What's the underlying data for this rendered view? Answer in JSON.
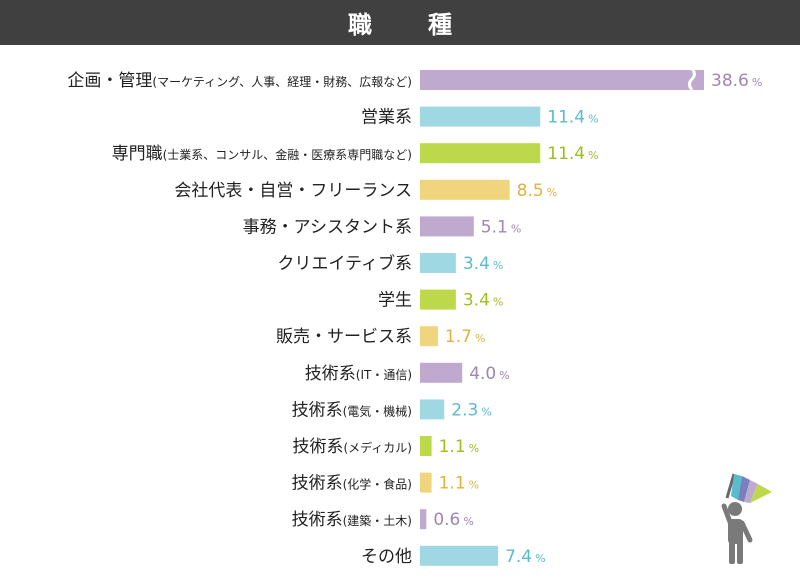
{
  "header": {
    "title": "職　種"
  },
  "chart_data": {
    "type": "bar",
    "orientation": "horizontal",
    "title": "職　種",
    "unit": "%",
    "axis_break": true,
    "categories": [
      {
        "main": "企画・管理",
        "sub": "(マーケティング、人事、経理・財務、広報など)"
      },
      {
        "main": "営業系",
        "sub": ""
      },
      {
        "main": "専門職",
        "sub": "(士業系、コンサル、金融・医療系専門職など)"
      },
      {
        "main": "会社代表・自営・フリーランス",
        "sub": ""
      },
      {
        "main": "事務・アシスタント系",
        "sub": ""
      },
      {
        "main": "クリエイティブ系",
        "sub": ""
      },
      {
        "main": "学生",
        "sub": ""
      },
      {
        "main": "販売・サービス系",
        "sub": ""
      },
      {
        "main": "技術系",
        "sub": "(IT・通信)"
      },
      {
        "main": "技術系",
        "sub": "(電気・機械)"
      },
      {
        "main": "技術系",
        "sub": "(メディカル)"
      },
      {
        "main": "技術系",
        "sub": "(化学・食品)"
      },
      {
        "main": "技術系",
        "sub": "(建築・土木)"
      },
      {
        "main": "その他",
        "sub": ""
      }
    ],
    "values": [
      38.6,
      11.4,
      11.4,
      8.5,
      5.1,
      3.4,
      3.4,
      1.7,
      4.0,
      2.3,
      1.1,
      1.1,
      0.6,
      7.4
    ],
    "value_labels": [
      "38.6",
      "11.4",
      "11.4",
      "8.5",
      "5.1",
      "3.4",
      "3.4",
      "1.7",
      "4.0",
      "2.3",
      "1.1",
      "1.1",
      "0.6",
      "7.4"
    ],
    "colors": [
      "#bfa9cf",
      "#9fd8e2",
      "#bdd84a",
      "#f0d47e"
    ],
    "label_colors": [
      "#9f86b3",
      "#59bccc",
      "#9cbf1e",
      "#e0b340"
    ]
  }
}
